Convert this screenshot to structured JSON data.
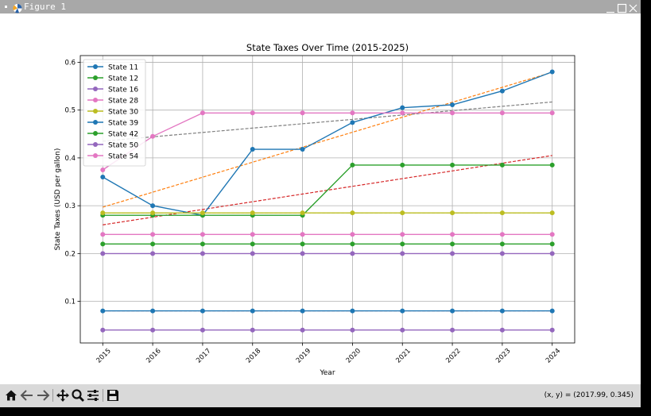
{
  "window": {
    "title": "Figure 1",
    "controls": [
      "minimize-icon",
      "maximize-icon",
      "close-icon"
    ]
  },
  "toolbar": {
    "tools": [
      {
        "name": "home-button",
        "icon": "home-icon",
        "label": "Home"
      },
      {
        "name": "back-button",
        "icon": "arrow-left-icon",
        "label": "Back"
      },
      {
        "name": "forward-button",
        "icon": "arrow-right-icon",
        "label": "Forward"
      },
      {
        "name": "pan-button",
        "icon": "move-icon",
        "label": "Pan"
      },
      {
        "name": "zoom-button",
        "icon": "magnifier-icon",
        "label": "Zoom"
      },
      {
        "name": "configure-button",
        "icon": "sliders-icon",
        "label": "Configure subplots"
      },
      {
        "name": "save-button",
        "icon": "floppy-icon",
        "label": "Save"
      }
    ],
    "coords": "(x, y) = (2017.99, 0.345)"
  },
  "chart_data": {
    "type": "line",
    "title": "State Taxes Over Time (2015-2025)",
    "xlabel": "Year",
    "ylabel": "State Taxes (USD per gallon)",
    "x": [
      2015,
      2016,
      2017,
      2018,
      2019,
      2020,
      2021,
      2022,
      2023,
      2024
    ],
    "xlim": [
      2014.55,
      2024.45
    ],
    "ylim": [
      0.013,
      0.614
    ],
    "yticks": [
      0.1,
      0.2,
      0.3,
      0.4,
      0.5,
      0.6
    ],
    "grid": true,
    "legend_position": "top-left",
    "series": [
      {
        "name": "State 11",
        "color": "#1f77b4",
        "values": [
          0.36,
          0.3,
          0.28,
          0.418,
          0.418,
          0.474,
          0.505,
          0.511,
          0.54,
          0.58
        ]
      },
      {
        "name": "State 12",
        "color": "#2ca02c",
        "values": [
          0.28,
          0.28,
          0.28,
          0.28,
          0.28,
          0.385,
          0.385,
          0.385,
          0.385,
          0.385
        ]
      },
      {
        "name": "State 16",
        "color": "#9467bd",
        "values": [
          0.04,
          0.04,
          0.04,
          0.04,
          0.04,
          0.04,
          0.04,
          0.04,
          0.04,
          0.04
        ]
      },
      {
        "name": "State 28",
        "color": "#e377c2",
        "values": [
          0.375,
          0.445,
          0.494,
          0.494,
          0.494,
          0.494,
          0.494,
          0.494,
          0.494,
          0.494
        ]
      },
      {
        "name": "State 30",
        "color": "#bcbd22",
        "values": [
          0.285,
          0.285,
          0.285,
          0.285,
          0.285,
          0.285,
          0.285,
          0.285,
          0.285,
          0.285
        ]
      },
      {
        "name": "State 39",
        "color": "#1f77b4",
        "values": [
          0.08,
          0.08,
          0.08,
          0.08,
          0.08,
          0.08,
          0.08,
          0.08,
          0.08,
          0.08
        ]
      },
      {
        "name": "State 42",
        "color": "#2ca02c",
        "values": [
          0.22,
          0.22,
          0.22,
          0.22,
          0.22,
          0.22,
          0.22,
          0.22,
          0.22,
          0.22
        ]
      },
      {
        "name": "State 50",
        "color": "#9467bd",
        "values": [
          0.2,
          0.2,
          0.2,
          0.2,
          0.2,
          0.2,
          0.2,
          0.2,
          0.2,
          0.2
        ]
      },
      {
        "name": "State 54",
        "color": "#e377c2",
        "values": [
          0.24,
          0.24,
          0.24,
          0.24,
          0.24,
          0.24,
          0.24,
          0.24,
          0.24,
          0.24
        ]
      }
    ],
    "trendlines": [
      {
        "color": "#ff7f0e",
        "values": [
          0.297,
          0.579
        ]
      },
      {
        "color": "#d62728",
        "values": [
          0.26,
          0.405
        ]
      },
      {
        "color": "#7f7f7f",
        "values": [
          0.435,
          0.517
        ]
      },
      {
        "color": "#98df8a",
        "values": [
          0.285,
          0.285
        ]
      },
      {
        "color": "#ff9896",
        "values": [
          0.08,
          0.08
        ]
      }
    ]
  }
}
